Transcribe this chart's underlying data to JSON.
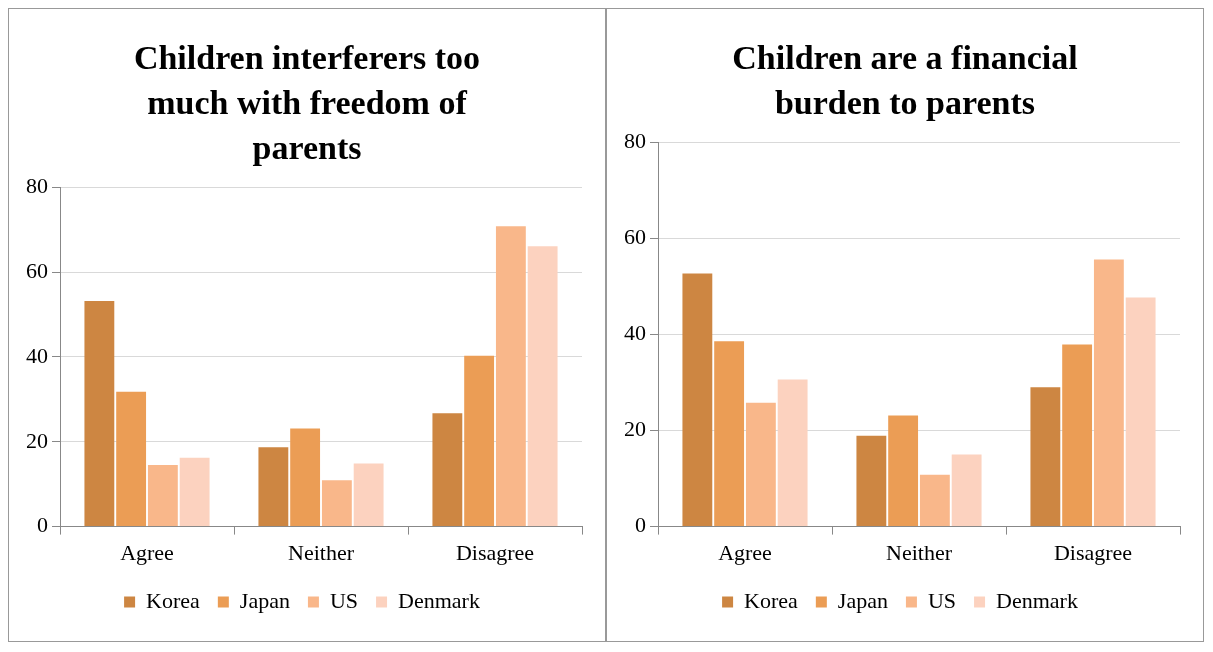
{
  "chart_data": [
    {
      "type": "bar",
      "title": "Children interferers too much with freedom of parents",
      "categories": [
        "Agree",
        "Neither",
        "Disagree"
      ],
      "series": [
        {
          "name": "Korea",
          "color": "#cd8642",
          "values": [
            53.2,
            18.7,
            26.7
          ]
        },
        {
          "name": "Japan",
          "color": "#eb9d55",
          "values": [
            31.8,
            23.1,
            40.3
          ]
        },
        {
          "name": "US",
          "color": "#f9b78a",
          "values": [
            14.5,
            10.9,
            70.8
          ]
        },
        {
          "name": "Denmark",
          "color": "#fcd2bf",
          "values": [
            16.2,
            14.9,
            66.1
          ]
        }
      ],
      "ylim": [
        0,
        80
      ],
      "yticks": [
        0,
        20,
        40,
        60,
        80
      ],
      "grid": "y",
      "legend": "bottom"
    },
    {
      "type": "bar",
      "title": "Children are a financial burden to parents",
      "categories": [
        "Agree",
        "Neither",
        "Disagree"
      ],
      "series": [
        {
          "name": "Korea",
          "color": "#cd8642",
          "values": [
            52.7,
            18.9,
            29.0
          ]
        },
        {
          "name": "Japan",
          "color": "#eb9d55",
          "values": [
            38.6,
            23.1,
            37.9
          ]
        },
        {
          "name": "US",
          "color": "#f9b78a",
          "values": [
            25.8,
            10.8,
            55.6
          ]
        },
        {
          "name": "Denmark",
          "color": "#fcd2bf",
          "values": [
            30.6,
            15.0,
            47.7
          ]
        }
      ],
      "ylim": [
        0,
        80
      ],
      "yticks": [
        0,
        20,
        40,
        60,
        80
      ],
      "grid": "y",
      "legend": "bottom"
    }
  ]
}
